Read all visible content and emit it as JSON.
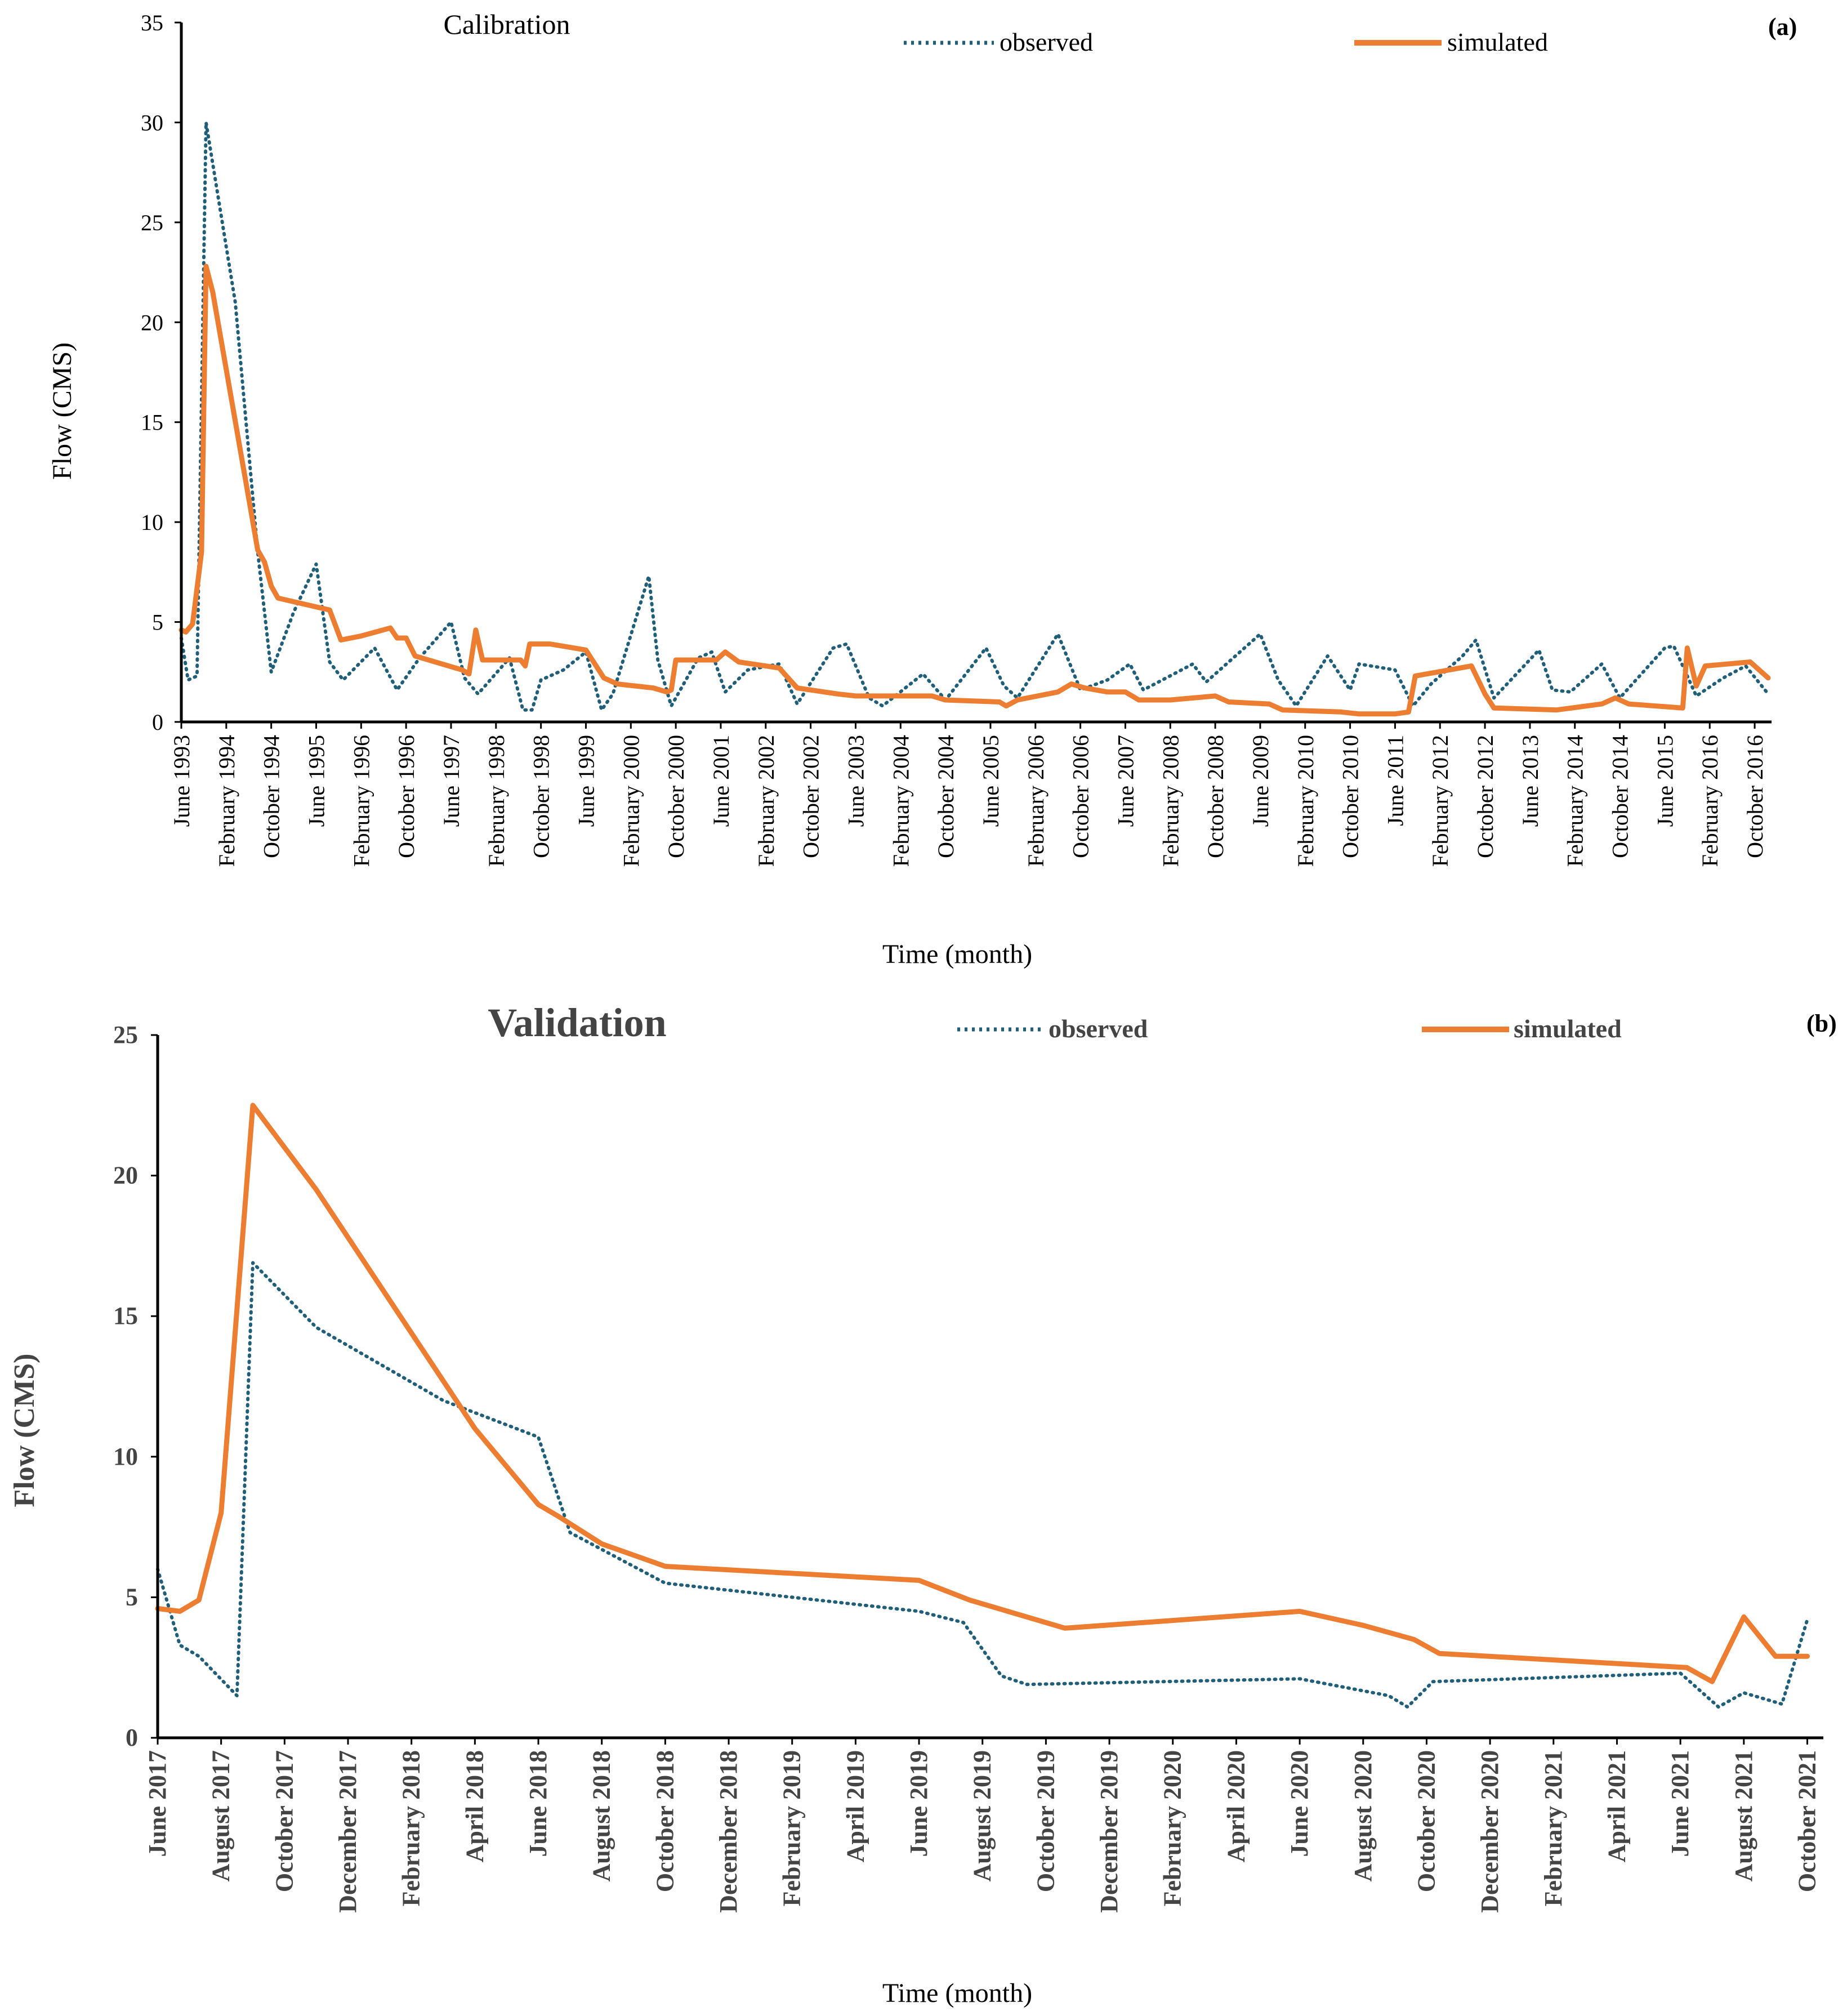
{
  "chart_data": [
    {
      "panel": "(a)",
      "type": "line",
      "title": "Calibration",
      "xlabel": "Time (month)",
      "ylabel": "Flow (CMS)",
      "ylim": [
        0,
        35
      ],
      "yticks": [
        0,
        5,
        10,
        15,
        20,
        25,
        30,
        35
      ],
      "grid": false,
      "legend_position": "top",
      "categories": [
        "June 1993",
        "February 1994",
        "October 1994",
        "June 1995",
        "February 1996",
        "October 1996",
        "June 1997",
        "February 1998",
        "October 1998",
        "June 1999",
        "February 2000",
        "October 2000",
        "June 2001",
        "February 2002",
        "October 2002",
        "June 2003",
        "February 2004",
        "October 2004",
        "June 2005",
        "February 2006",
        "October 2006",
        "June 2007",
        "February 2008",
        "October 2008",
        "June 2009",
        "February 2010",
        "October 2010",
        "June 2011",
        "February 2012",
        "October 2012",
        "June 2013",
        "February 2014",
        "October 2014",
        "June 2015",
        "February 2016",
        "October 2016"
      ],
      "series": [
        {
          "name": "observed",
          "style": "dotted",
          "color": "#1f5f7a",
          "points": [
            [
              0,
              4.2
            ],
            [
              0.15,
              2.1
            ],
            [
              0.35,
              2.3
            ],
            [
              0.55,
              30
            ],
            [
              1.2,
              21
            ],
            [
              1.7,
              8.5
            ],
            [
              2.0,
              2.5
            ],
            [
              2.5,
              5.5
            ],
            [
              3.0,
              7.9
            ],
            [
              3.3,
              3
            ],
            [
              3.6,
              2.1
            ],
            [
              4.3,
              3.7
            ],
            [
              4.8,
              1.6
            ],
            [
              5.3,
              3.2
            ],
            [
              6.0,
              5
            ],
            [
              6.3,
              2.2
            ],
            [
              6.6,
              1.4
            ],
            [
              7.3,
              3.2
            ],
            [
              7.6,
              0.6
            ],
            [
              7.8,
              0.6
            ],
            [
              8.0,
              2.1
            ],
            [
              8.5,
              2.6
            ],
            [
              9.0,
              3.5
            ],
            [
              9.35,
              0.6
            ],
            [
              9.6,
              1.4
            ],
            [
              10.4,
              7.3
            ],
            [
              10.6,
              3.1
            ],
            [
              10.9,
              0.8
            ],
            [
              11.5,
              3.2
            ],
            [
              11.8,
              3.5
            ],
            [
              12.1,
              1.5
            ],
            [
              12.6,
              2.6
            ],
            [
              13.3,
              2.9
            ],
            [
              13.7,
              0.9
            ],
            [
              14.5,
              3.7
            ],
            [
              14.8,
              3.9
            ],
            [
              15.3,
              1.2
            ],
            [
              15.6,
              0.8
            ],
            [
              16.5,
              2.4
            ],
            [
              17.0,
              1.1
            ],
            [
              17.9,
              3.7
            ],
            [
              18.3,
              1.8
            ],
            [
              18.6,
              1.2
            ],
            [
              19.5,
              4.4
            ],
            [
              20.0,
              1.6
            ],
            [
              20.6,
              2.1
            ],
            [
              21.1,
              2.9
            ],
            [
              21.4,
              1.6
            ],
            [
              22.5,
              2.9
            ],
            [
              22.8,
              2.0
            ],
            [
              23.5,
              3.4
            ],
            [
              24.0,
              4.4
            ],
            [
              24.4,
              2.1
            ],
            [
              24.8,
              0.8
            ],
            [
              25.5,
              3.3
            ],
            [
              26.0,
              1.6
            ],
            [
              26.2,
              2.9
            ],
            [
              27.0,
              2.6
            ],
            [
              27.4,
              0.8
            ],
            [
              27.8,
              1.9
            ],
            [
              28.5,
              3.3
            ],
            [
              28.8,
              4.1
            ],
            [
              29.2,
              1.2
            ],
            [
              30.2,
              3.6
            ],
            [
              30.5,
              1.6
            ],
            [
              30.9,
              1.5
            ],
            [
              31.6,
              2.9
            ],
            [
              32.0,
              1.2
            ],
            [
              33.0,
              3.7
            ],
            [
              33.2,
              3.8
            ],
            [
              33.7,
              1.3
            ],
            [
              34.3,
              2.2
            ],
            [
              34.8,
              2.8
            ],
            [
              35.3,
              1.4
            ]
          ]
        },
        {
          "name": "simulated",
          "style": "solid",
          "color": "#ed7d31",
          "points": [
            [
              0,
              4.6
            ],
            [
              0.1,
              4.5
            ],
            [
              0.25,
              4.9
            ],
            [
              0.45,
              8.5
            ],
            [
              0.55,
              22.8
            ],
            [
              0.7,
              21.5
            ],
            [
              1.7,
              8.6
            ],
            [
              1.85,
              8.0
            ],
            [
              2.0,
              6.8
            ],
            [
              2.15,
              6.2
            ],
            [
              3.3,
              5.6
            ],
            [
              3.55,
              4.1
            ],
            [
              4.0,
              4.3
            ],
            [
              4.65,
              4.7
            ],
            [
              4.8,
              4.2
            ],
            [
              5.0,
              4.2
            ],
            [
              5.2,
              3.3
            ],
            [
              6.25,
              2.6
            ],
            [
              6.4,
              2.4
            ],
            [
              6.55,
              4.6
            ],
            [
              6.7,
              3.1
            ],
            [
              7.55,
              3.1
            ],
            [
              7.65,
              2.8
            ],
            [
              7.75,
              3.9
            ],
            [
              8.0,
              3.9
            ],
            [
              8.2,
              3.9
            ],
            [
              9.0,
              3.6
            ],
            [
              9.4,
              2.2
            ],
            [
              9.7,
              1.9
            ],
            [
              10.5,
              1.7
            ],
            [
              10.8,
              1.5
            ],
            [
              10.9,
              1.6
            ],
            [
              11.0,
              3.1
            ],
            [
              11.9,
              3.1
            ],
            [
              12.1,
              3.5
            ],
            [
              12.4,
              3.0
            ],
            [
              13.3,
              2.7
            ],
            [
              13.7,
              1.7
            ],
            [
              14.6,
              1.4
            ],
            [
              15.0,
              1.3
            ],
            [
              16.7,
              1.3
            ],
            [
              17.0,
              1.1
            ],
            [
              18.2,
              1.0
            ],
            [
              18.35,
              0.8
            ],
            [
              18.6,
              1.1
            ],
            [
              19.5,
              1.5
            ],
            [
              19.8,
              1.9
            ],
            [
              20.1,
              1.7
            ],
            [
              20.6,
              1.5
            ],
            [
              21.0,
              1.5
            ],
            [
              21.3,
              1.1
            ],
            [
              22.0,
              1.1
            ],
            [
              23.0,
              1.3
            ],
            [
              23.3,
              1.0
            ],
            [
              24.2,
              0.9
            ],
            [
              24.5,
              0.6
            ],
            [
              25.8,
              0.5
            ],
            [
              26.2,
              0.4
            ],
            [
              27.0,
              0.4
            ],
            [
              27.3,
              0.5
            ],
            [
              27.45,
              2.3
            ],
            [
              28.7,
              2.8
            ],
            [
              29.0,
              1.4
            ],
            [
              29.2,
              0.7
            ],
            [
              30.6,
              0.6
            ],
            [
              31.6,
              0.9
            ],
            [
              31.9,
              1.2
            ],
            [
              32.2,
              0.9
            ],
            [
              33.4,
              0.7
            ],
            [
              33.5,
              3.7
            ],
            [
              33.7,
              1.8
            ],
            [
              33.9,
              2.8
            ],
            [
              34.9,
              3.0
            ],
            [
              35.3,
              2.2
            ]
          ]
        }
      ]
    },
    {
      "panel": "(b)",
      "type": "line",
      "title": "Validation",
      "xlabel": "Time (month)",
      "ylabel": "Flow (CMS)",
      "ylim": [
        0,
        25
      ],
      "yticks": [
        0,
        5,
        10,
        15,
        20,
        25
      ],
      "grid": false,
      "legend_position": "top",
      "categories": [
        "June 2017",
        "August 2017",
        "October 2017",
        "December 2017",
        "February 2018",
        "April 2018",
        "June 2018",
        "August 2018",
        "October 2018",
        "December 2018",
        "February 2019",
        "April 2019",
        "June 2019",
        "August 2019",
        "October 2019",
        "December 2019",
        "February 2020",
        "April 2020",
        "June 2020",
        "August 2020",
        "October 2020",
        "December 2020",
        "February 2021",
        "April 2021",
        "June 2021",
        "August 2021",
        "October 2021"
      ],
      "series": [
        {
          "name": "observed",
          "style": "dotted",
          "color": "#1f5f7a",
          "points": [
            [
              0,
              6.0
            ],
            [
              0.35,
              3.3
            ],
            [
              0.65,
              2.9
            ],
            [
              1.25,
              1.5
            ],
            [
              1.5,
              16.9
            ],
            [
              2.5,
              14.6
            ],
            [
              4.5,
              12.0
            ],
            [
              6.0,
              10.7
            ],
            [
              6.5,
              7.3
            ],
            [
              8.0,
              5.5
            ],
            [
              12.0,
              4.5
            ],
            [
              12.7,
              4.1
            ],
            [
              13.3,
              2.2
            ],
            [
              13.7,
              1.9
            ],
            [
              18.0,
              2.1
            ],
            [
              19.4,
              1.5
            ],
            [
              19.7,
              1.1
            ],
            [
              20.1,
              2.0
            ],
            [
              24.0,
              2.3
            ],
            [
              24.6,
              1.1
            ],
            [
              25.0,
              1.6
            ],
            [
              25.6,
              1.2
            ],
            [
              26.0,
              4.2
            ]
          ]
        },
        {
          "name": "simulated",
          "style": "solid",
          "color": "#ed7d31",
          "points": [
            [
              0,
              4.6
            ],
            [
              0.35,
              4.5
            ],
            [
              0.65,
              4.9
            ],
            [
              1.0,
              8.0
            ],
            [
              1.5,
              22.5
            ],
            [
              2.5,
              19.5
            ],
            [
              4.0,
              14.4
            ],
            [
              5.0,
              11.0
            ],
            [
              6.0,
              8.3
            ],
            [
              6.3,
              7.9
            ],
            [
              7.0,
              6.9
            ],
            [
              8.0,
              6.1
            ],
            [
              12.0,
              5.6
            ],
            [
              12.8,
              4.9
            ],
            [
              13.4,
              4.5
            ],
            [
              14.3,
              3.9
            ],
            [
              18.0,
              4.5
            ],
            [
              19.0,
              4.0
            ],
            [
              19.8,
              3.5
            ],
            [
              20.2,
              3.0
            ],
            [
              24.1,
              2.5
            ],
            [
              24.5,
              2.0
            ],
            [
              25.0,
              4.3
            ],
            [
              25.5,
              2.9
            ],
            [
              26.0,
              2.9
            ]
          ]
        }
      ]
    }
  ],
  "panel_a": {
    "title": "Calibration",
    "panel_label": "(a)",
    "legend_observed": "observed",
    "legend_simulated": "simulated",
    "ylabel": "Flow (CMS)",
    "xlabel": "Time (month)"
  },
  "panel_b": {
    "title": "Validation",
    "panel_label": "(b)",
    "legend_observed": "observed",
    "legend_simulated": "simulated",
    "ylabel": "Flow (CMS)",
    "xlabel": "Time (month)"
  },
  "colors": {
    "observed": "#1f5f7a",
    "simulated": "#ed7d31",
    "axis": "#000000"
  }
}
